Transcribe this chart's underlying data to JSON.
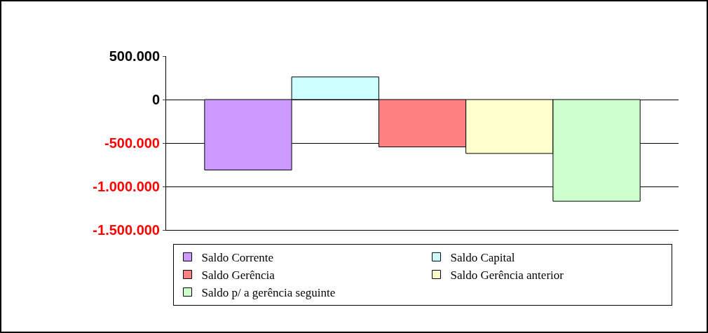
{
  "chart_data": {
    "type": "bar",
    "categories": [
      null
    ],
    "series": [
      {
        "name": "Saldo Corrente",
        "color": "#cc99ff",
        "values": [
          -810000
        ]
      },
      {
        "name": "Saldo Capital",
        "color": "#ccffff",
        "values": [
          260000
        ]
      },
      {
        "name": "Saldo Gerência",
        "color": "#ff8080",
        "values": [
          -545000
        ]
      },
      {
        "name": "Saldo Gerência anterior",
        "color": "#ffffcc",
        "values": [
          -620000
        ]
      },
      {
        "name": "Saldo p/ a gerência seguinte",
        "color": "#ccffcc",
        "values": [
          -1170000
        ]
      }
    ],
    "ylim": [
      -1500000,
      500000
    ],
    "yticks": [
      {
        "value": 500000,
        "label": "500.000"
      },
      0,
      {
        "value": -500000,
        "label": "-500.000"
      },
      {
        "value": -1000000,
        "label": "-1.000.000"
      },
      {
        "value": -1500000,
        "label": "-1.500.000"
      }
    ],
    "grid": "y",
    "legend": "bottom"
  }
}
